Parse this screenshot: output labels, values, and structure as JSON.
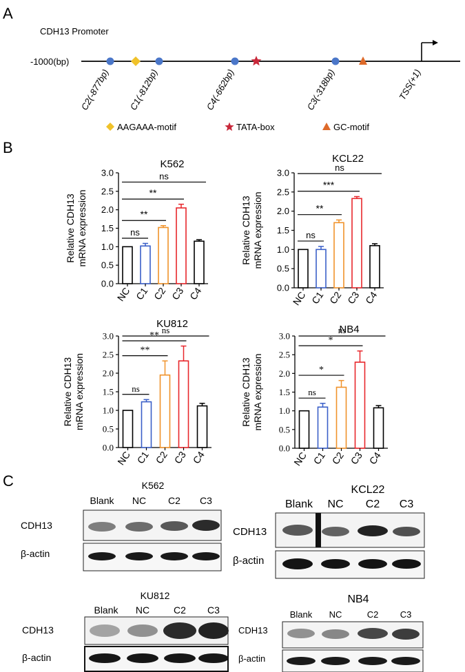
{
  "panels": {
    "a": {
      "letter": "A",
      "title": "CDH13 Promoter",
      "start_label": "-1000(bp)",
      "tss_label": "TSS(+1)",
      "sites": [
        {
          "label": "C2(-877bp)",
          "position_bp": -877
        },
        {
          "label": "C1(-812bp)",
          "position_bp": -812
        },
        {
          "label": "C4(-662bp)",
          "position_bp": -662
        },
        {
          "label": "C3(-318bp)",
          "position_bp": -318
        }
      ],
      "motifs": [
        {
          "name": "AAGAAA-motif",
          "position_bp": -845
        },
        {
          "name": "TATA-box",
          "position_bp": -640
        },
        {
          "name": "GC-motif",
          "position_bp": -300
        }
      ],
      "legend": [
        "AAGAAA-motif",
        "TATA-box",
        "GC-motif"
      ],
      "colors": {
        "site": "#4b77c9",
        "aagaaa": "#f0c22a",
        "tata": "#c8283a",
        "gc": "#de6a2a"
      }
    },
    "b": {
      "letter": "B",
      "c": {
        "letter": "C",
        "blots": [
          {
            "title": "K562",
            "lanes": [
              "Blank",
              "NC",
              "C2",
              "C3"
            ],
            "rows": [
              "CDH13",
              "β-actin"
            ],
            "cdh13_intensity": [
              0.4,
              0.5,
              0.6,
              0.85
            ]
          },
          {
            "title": "KCL22",
            "lanes": [
              "Blank",
              "NC",
              "C2",
              "C3"
            ],
            "rows": [
              "CDH13",
              "β-actin"
            ],
            "cdh13_intensity": [
              0.6,
              0.55,
              0.9,
              0.65
            ]
          },
          {
            "title": "KU812",
            "lanes": [
              "Blank",
              "NC",
              "C2",
              "C3"
            ],
            "rows": [
              "CDH13",
              "β-actin"
            ],
            "cdh13_intensity": [
              0.2,
              0.3,
              0.85,
              0.9
            ]
          },
          {
            "title": "NB4",
            "lanes": [
              "Blank",
              "NC",
              "C2",
              "C3"
            ],
            "rows": [
              "CDH13",
              "β-actin"
            ],
            "cdh13_intensity": [
              0.3,
              0.35,
              0.7,
              0.75
            ]
          }
        ]
      }
    }
  },
  "chart_data": [
    {
      "type": "bar",
      "title": "K562",
      "ylabel": "Relative CDH13\nmRNA expression",
      "categories": [
        "NC",
        "C1",
        "C2",
        "C3",
        "C4"
      ],
      "values": [
        1.0,
        1.02,
        1.52,
        2.05,
        1.15
      ],
      "errors": [
        0.0,
        0.07,
        0.05,
        0.1,
        0.04
      ],
      "colors": [
        "#000000",
        "#3a5fc8",
        "#f0922a",
        "#e8262b",
        "#000000"
      ],
      "ylim": [
        0,
        3.0
      ],
      "yticks": [
        "0.0",
        "0.5",
        "1.0",
        "1.5",
        "2.0",
        "2.5",
        "3.0"
      ],
      "sig": [
        {
          "pair": [
            "NC",
            "C1"
          ],
          "label": "ns"
        },
        {
          "pair": [
            "NC",
            "C2"
          ],
          "label": "**"
        },
        {
          "pair": [
            "NC",
            "C3"
          ],
          "label": "**"
        },
        {
          "pair": [
            "NC",
            "C4"
          ],
          "label": "ns"
        }
      ]
    },
    {
      "type": "bar",
      "title": "KCL22",
      "ylabel": "Relative CDH13\nmRNA expression",
      "categories": [
        "NC",
        "C1",
        "C2",
        "C3",
        "C4"
      ],
      "values": [
        1.0,
        1.0,
        1.7,
        2.33,
        1.1
      ],
      "errors": [
        0.0,
        0.08,
        0.07,
        0.05,
        0.05
      ],
      "colors": [
        "#000000",
        "#3a5fc8",
        "#f0922a",
        "#e8262b",
        "#000000"
      ],
      "ylim": [
        0,
        3.0
      ],
      "yticks": [
        "0.0",
        "0.5",
        "1.0",
        "1.5",
        "2.0",
        "2.5",
        "3.0"
      ],
      "sig": [
        {
          "pair": [
            "NC",
            "C1"
          ],
          "label": "ns"
        },
        {
          "pair": [
            "NC",
            "C2"
          ],
          "label": "**"
        },
        {
          "pair": [
            "NC",
            "C3"
          ],
          "label": "***"
        },
        {
          "pair": [
            "NC",
            "C4"
          ],
          "label": "ns"
        }
      ]
    },
    {
      "type": "bar",
      "title": "KU812",
      "ylabel": "Relative CDH13\nmRNA expression",
      "categories": [
        "NC",
        "C1",
        "C2",
        "C3",
        "C4"
      ],
      "values": [
        1.0,
        1.23,
        1.95,
        2.33,
        1.12
      ],
      "errors": [
        0.0,
        0.06,
        0.38,
        0.4,
        0.07
      ],
      "colors": [
        "#000000",
        "#3a5fc8",
        "#f0922a",
        "#e8262b",
        "#000000"
      ],
      "ylim": [
        0,
        3.0
      ],
      "yticks": [
        "0.0",
        "0.5",
        "1.0",
        "1.5",
        "2.0",
        "2.5",
        "3.0"
      ],
      "sig": [
        {
          "pair": [
            "NC",
            "C1"
          ],
          "label": "ns"
        },
        {
          "pair": [
            "NC",
            "C2"
          ],
          "label": "**"
        },
        {
          "pair": [
            "NC",
            "C3"
          ],
          "label": "**"
        },
        {
          "pair": [
            "NC",
            "C4"
          ],
          "label": "ns"
        }
      ]
    },
    {
      "type": "bar",
      "title": "NB4",
      "ylabel": "Relative CDH13\nmRNA expression",
      "categories": [
        "NC",
        "C1",
        "C2",
        "C3",
        "C4"
      ],
      "values": [
        1.0,
        1.1,
        1.63,
        2.3,
        1.08
      ],
      "errors": [
        0.0,
        0.1,
        0.18,
        0.3,
        0.06
      ],
      "colors": [
        "#000000",
        "#3a5fc8",
        "#f0922a",
        "#e8262b",
        "#000000"
      ],
      "ylim": [
        0,
        3.0
      ],
      "yticks": [
        "0.0",
        "0.5",
        "1.0",
        "1.5",
        "2.0",
        "2.5",
        "3.0"
      ],
      "sig": [
        {
          "pair": [
            "NC",
            "C1"
          ],
          "label": "ns"
        },
        {
          "pair": [
            "NC",
            "C2"
          ],
          "label": "*"
        },
        {
          "pair": [
            "NC",
            "C3"
          ],
          "label": "*"
        },
        {
          "pair": [
            "NC",
            "C4"
          ],
          "label": "ns"
        }
      ]
    }
  ]
}
